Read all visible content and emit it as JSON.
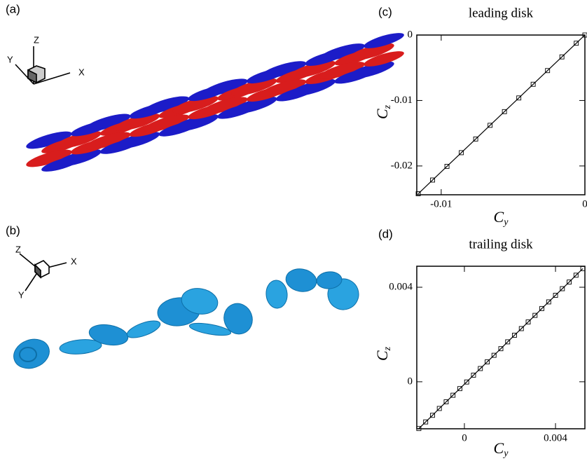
{
  "panels": [
    {
      "label": "(a)",
      "axes": [
        "X",
        "Y",
        "Z"
      ]
    },
    {
      "label": "(b)",
      "axes": [
        "X",
        "Y",
        "Z"
      ]
    }
  ],
  "chart_data": [
    {
      "type": "line",
      "label": "(c)",
      "title": "leading disk",
      "xlabel": {
        "main": "C",
        "sub": "y"
      },
      "ylabel": {
        "main": "C",
        "sub": "z"
      },
      "color": "#000000",
      "marker": "square",
      "x": [
        -0.0116,
        -0.0106,
        -0.0096,
        -0.0086,
        -0.0076,
        -0.0066,
        -0.0056,
        -0.0046,
        -0.0036,
        -0.0026,
        -0.0016,
        -0.0006,
        0
      ],
      "values": [
        -0.02424,
        -0.02215,
        -0.02006,
        -0.01797,
        -0.01588,
        -0.01379,
        -0.0117,
        -0.00961,
        -0.00752,
        -0.00543,
        -0.00334,
        -0.00125,
        0
      ],
      "xlim": [
        -0.0117,
        0
      ],
      "ylim": [
        -0.0244,
        0
      ],
      "xticks": [
        -0.01,
        0
      ],
      "yticks": [
        0,
        -0.01,
        -0.02
      ]
    },
    {
      "type": "line",
      "label": "(d)",
      "title": "trailing disk",
      "xlabel": {
        "main": "C",
        "sub": "y"
      },
      "ylabel": {
        "main": "C",
        "sub": "z"
      },
      "color": "#000000",
      "marker": "square",
      "x": [
        -0.002,
        -0.0017,
        -0.0014,
        -0.0011,
        -0.0008,
        -0.0005,
        -0.0002,
        0.0001,
        0.0004,
        0.0007,
        0.001,
        0.0013,
        0.0016,
        0.0019,
        0.0022,
        0.0025,
        0.0028,
        0.0031,
        0.0034,
        0.0037,
        0.004,
        0.0043,
        0.0046,
        0.0049,
        0.0052
      ],
      "values": [
        -0.00198,
        -0.0017,
        -0.00142,
        -0.00113,
        -0.00085,
        -0.00057,
        -0.00029,
        -1e-05,
        0.00028,
        0.00056,
        0.00084,
        0.00112,
        0.0014,
        0.00169,
        0.00197,
        0.00225,
        0.00253,
        0.00281,
        0.0031,
        0.00338,
        0.00366,
        0.00394,
        0.00422,
        0.00451,
        0.00479
      ],
      "xlim": [
        -0.00209,
        0.00529
      ],
      "ylim": [
        -0.00199,
        0.00489
      ],
      "xticks": [
        0,
        0.004
      ],
      "yticks": [
        0,
        0.004
      ]
    }
  ]
}
